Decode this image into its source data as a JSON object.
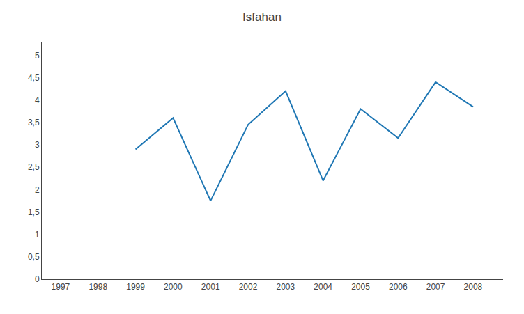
{
  "chart_data": {
    "type": "line",
    "title": "Isfahan",
    "x": [
      1999,
      2000,
      2001,
      2002,
      2003,
      2004,
      2005,
      2006,
      2007,
      2008
    ],
    "values": [
      2.9,
      3.6,
      1.75,
      3.45,
      4.2,
      2.2,
      3.8,
      3.15,
      4.4,
      3.85
    ],
    "xlim": [
      1996.5,
      2008.8
    ],
    "xticks": [
      1997,
      1998,
      1999,
      2000,
      2001,
      2002,
      2003,
      2004,
      2005,
      2006,
      2007,
      2008
    ],
    "ylim": [
      0,
      5.3
    ],
    "yticks": [
      0,
      {
        "value": 0.5,
        "label": "0,5"
      },
      1,
      {
        "value": 1.5,
        "label": "1,5"
      },
      2,
      {
        "value": 2.5,
        "label": "2,5"
      },
      3,
      {
        "value": 3.5,
        "label": "3,5"
      },
      4,
      {
        "value": 4.5,
        "label": "4,5"
      },
      5
    ],
    "grid": false
  }
}
